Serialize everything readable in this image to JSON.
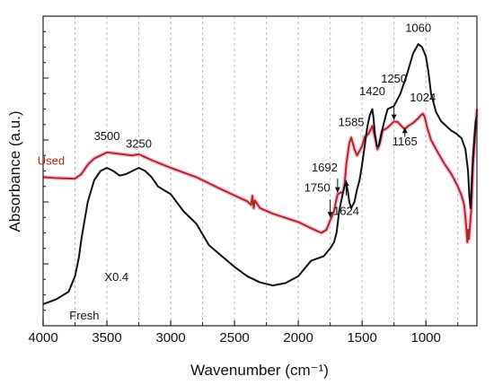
{
  "chart_data": {
    "type": "line",
    "xlabel": "Wavenumber (cm⁻¹)",
    "ylabel": "Absorbance (a.u.)",
    "x_reversed": true,
    "xlim": [
      4000,
      600
    ],
    "ylim": [
      0,
      100
    ],
    "x_ticks": [
      4000,
      3500,
      3000,
      2500,
      2000,
      1500,
      1000
    ],
    "x_tick_labels": [
      "4000",
      "3500",
      "3000",
      "2500",
      "2000",
      "1500",
      "1000"
    ],
    "grid": "vertical dashed",
    "series": [
      {
        "name": "Used",
        "color": "#b22a10",
        "halo": "#f3c6f2",
        "points": [
          [
            4000,
            48
          ],
          [
            3900,
            47.7
          ],
          [
            3750,
            47.5
          ],
          [
            3700,
            49
          ],
          [
            3650,
            52
          ],
          [
            3600,
            54
          ],
          [
            3500,
            56
          ],
          [
            3400,
            55.5
          ],
          [
            3300,
            55
          ],
          [
            3250,
            55.4
          ],
          [
            3150,
            53.5
          ],
          [
            3000,
            51
          ],
          [
            2800,
            48
          ],
          [
            2600,
            44
          ],
          [
            2400,
            40.2
          ],
          [
            2370,
            39
          ],
          [
            2360,
            42
          ],
          [
            2350,
            38
          ],
          [
            2340,
            40.5
          ],
          [
            2300,
            38
          ],
          [
            2200,
            36.2
          ],
          [
            2000,
            33.5
          ],
          [
            1900,
            31.5
          ],
          [
            1820,
            30
          ],
          [
            1780,
            31
          ],
          [
            1750,
            34
          ],
          [
            1720,
            37
          ],
          [
            1700,
            41
          ],
          [
            1692,
            42.5
          ],
          [
            1670,
            43
          ],
          [
            1650,
            43.2
          ],
          [
            1640,
            44.5
          ],
          [
            1624,
            52
          ],
          [
            1600,
            59
          ],
          [
            1585,
            60.8
          ],
          [
            1560,
            57
          ],
          [
            1540,
            55
          ],
          [
            1520,
            56.5
          ],
          [
            1500,
            58
          ],
          [
            1480,
            61
          ],
          [
            1450,
            62
          ],
          [
            1420,
            64.5
          ],
          [
            1400,
            61
          ],
          [
            1380,
            57
          ],
          [
            1360,
            59
          ],
          [
            1340,
            63
          ],
          [
            1300,
            64
          ],
          [
            1250,
            66
          ],
          [
            1220,
            65.8
          ],
          [
            1180,
            64
          ],
          [
            1165,
            63.5
          ],
          [
            1140,
            64.5
          ],
          [
            1100,
            65.5
          ],
          [
            1060,
            67
          ],
          [
            1040,
            68
          ],
          [
            1024,
            68.5
          ],
          [
            1010,
            67.5
          ],
          [
            990,
            64
          ],
          [
            960,
            60
          ],
          [
            900,
            55.5
          ],
          [
            850,
            52
          ],
          [
            800,
            49
          ],
          [
            750,
            45
          ],
          [
            720,
            42
          ],
          [
            700,
            39
          ],
          [
            690,
            35
          ],
          [
            680,
            30
          ],
          [
            675,
            27
          ],
          [
            670,
            31
          ],
          [
            663,
            28
          ],
          [
            655,
            32
          ],
          [
            645,
            37
          ],
          [
            630,
            52
          ],
          [
            610,
            64
          ],
          [
            600,
            70
          ]
        ]
      },
      {
        "name": "Fresh",
        "color": "#111111",
        "points": [
          [
            4000,
            7
          ],
          [
            3900,
            8.5
          ],
          [
            3800,
            11
          ],
          [
            3750,
            16
          ],
          [
            3720,
            22
          ],
          [
            3700,
            28
          ],
          [
            3650,
            40
          ],
          [
            3600,
            47
          ],
          [
            3550,
            50
          ],
          [
            3500,
            51
          ],
          [
            3450,
            50
          ],
          [
            3400,
            48.5
          ],
          [
            3350,
            49
          ],
          [
            3300,
            50
          ],
          [
            3250,
            51
          ],
          [
            3200,
            50
          ],
          [
            3150,
            48
          ],
          [
            3100,
            45
          ],
          [
            3000,
            42.5
          ],
          [
            2900,
            37
          ],
          [
            2800,
            33
          ],
          [
            2700,
            26
          ],
          [
            2600,
            22.5
          ],
          [
            2500,
            19
          ],
          [
            2400,
            16
          ],
          [
            2300,
            14
          ],
          [
            2200,
            13
          ],
          [
            2100,
            13.8
          ],
          [
            2000,
            16
          ],
          [
            1900,
            21
          ],
          [
            1800,
            22.5
          ],
          [
            1750,
            25
          ],
          [
            1720,
            27
          ],
          [
            1700,
            30
          ],
          [
            1680,
            37
          ],
          [
            1660,
            41
          ],
          [
            1640,
            45
          ],
          [
            1624,
            46
          ],
          [
            1610,
            43
          ],
          [
            1600,
            40
          ],
          [
            1585,
            38
          ],
          [
            1560,
            40
          ],
          [
            1540,
            44
          ],
          [
            1520,
            47
          ],
          [
            1500,
            52
          ],
          [
            1480,
            58
          ],
          [
            1460,
            64
          ],
          [
            1440,
            68
          ],
          [
            1420,
            70
          ],
          [
            1410,
            67
          ],
          [
            1400,
            62
          ],
          [
            1385,
            58
          ],
          [
            1370,
            58
          ],
          [
            1350,
            62
          ],
          [
            1320,
            67
          ],
          [
            1300,
            70
          ],
          [
            1250,
            71
          ],
          [
            1200,
            75
          ],
          [
            1150,
            81
          ],
          [
            1100,
            88
          ],
          [
            1060,
            91
          ],
          [
            1030,
            90
          ],
          [
            1000,
            87
          ],
          [
            980,
            82
          ],
          [
            960,
            75
          ],
          [
            920,
            69
          ],
          [
            880,
            66
          ],
          [
            840,
            64.5
          ],
          [
            800,
            63
          ],
          [
            760,
            62
          ],
          [
            720,
            60.5
          ],
          [
            690,
            57
          ],
          [
            670,
            50
          ],
          [
            660,
            42
          ],
          [
            650,
            38
          ],
          [
            640,
            47
          ],
          [
            630,
            55
          ],
          [
            620,
            61
          ],
          [
            610,
            66
          ],
          [
            600,
            68
          ]
        ]
      }
    ],
    "annotations": [
      {
        "text": "1060",
        "x": 1060,
        "y": 95,
        "anchor": "middle"
      },
      {
        "text": "3500",
        "x": 3500,
        "y": 60,
        "anchor": "middle"
      },
      {
        "text": "3250",
        "x": 3250,
        "y": 57.6,
        "anchor": "middle"
      },
      {
        "text": "1585",
        "x": 1585,
        "y": 64.5,
        "anchor": "middle"
      },
      {
        "text": "1420",
        "x": 1420,
        "y": 74.5,
        "anchor": "middle"
      },
      {
        "text": "1250",
        "x": 1250,
        "y": 78.5,
        "anchor": "middle"
      },
      {
        "text": "1024",
        "x": 1024,
        "y": 72.5,
        "anchor": "middle"
      },
      {
        "text": "1165",
        "x": 1165,
        "y": 58.2,
        "anchor": "middle"
      },
      {
        "text": "1692",
        "x": 1692,
        "y": 49.8,
        "anchor": "end"
      },
      {
        "text": "1750",
        "x": 1750,
        "y": 43.3,
        "anchor": "end"
      },
      {
        "text": "1624",
        "x": 1624,
        "y": 35.8,
        "anchor": "middle"
      },
      {
        "text": "X0.4",
        "x": 3330,
        "y": 14.5,
        "anchor": "end"
      },
      {
        "text": "Used",
        "x": 3830,
        "y": 52,
        "anchor": "end",
        "color": "#b22a10"
      },
      {
        "text": "Fresh",
        "x": 3560,
        "y": 2,
        "anchor": "end"
      }
    ],
    "arrows": [
      {
        "x": 1750,
        "y_from": 40.8,
        "y_to": 35
      },
      {
        "x": 1692,
        "y_from": 47.5,
        "y_to": 43
      },
      {
        "x": 1624,
        "y_from": 42,
        "y_to": 47
      },
      {
        "x": 1250,
        "y_from": 71,
        "y_to": 66.5
      },
      {
        "x": 1165,
        "y_from": 61,
        "y_to": 64
      }
    ]
  }
}
